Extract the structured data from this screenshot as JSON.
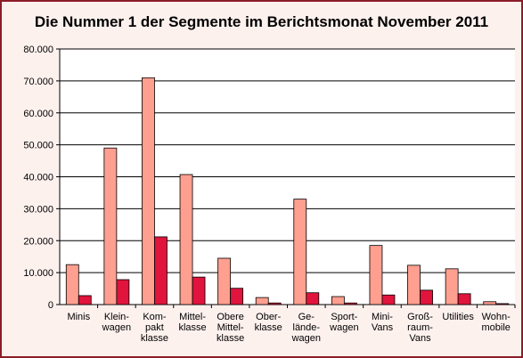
{
  "chart_data": {
    "type": "bar",
    "title": "Die Nummer 1 der Segmente im Berichtsmonat November 2011",
    "categories": [
      [
        "Minis"
      ],
      [
        "Klein-",
        "wagen"
      ],
      [
        "Kom-",
        "pakt",
        "klasse"
      ],
      [
        "Mittel-",
        "klasse"
      ],
      [
        "Obere",
        "Mittel-",
        "klasse"
      ],
      [
        "Ober-",
        "klasse"
      ],
      [
        "Ge-",
        "lände-",
        "wagen"
      ],
      [
        "Sport-",
        "wagen"
      ],
      [
        "Mini-",
        "Vans"
      ],
      [
        "Groß-",
        "raum-",
        "Vans"
      ],
      [
        "Utilities"
      ],
      [
        "Wohn-",
        "mobile"
      ]
    ],
    "series": [
      {
        "values": [
          12500,
          49000,
          71000,
          40700,
          14500,
          2200,
          33000,
          2500,
          18500,
          12300,
          11200,
          900
        ]
      },
      {
        "values": [
          2800,
          7800,
          21200,
          8600,
          5100,
          500,
          3700,
          500,
          3000,
          4500,
          3400,
          300
        ]
      }
    ],
    "y_ticks": [
      "0",
      "10.000",
      "20.000",
      "30.000",
      "40.000",
      "50.000",
      "60.000",
      "70.000",
      "80.000"
    ],
    "ylim": [
      0,
      80000
    ],
    "grid": true,
    "colors": {
      "series1": "#ff9f8f",
      "series2": "#e0143c",
      "frame_border": "#8c1c28",
      "frame_background": "#fdf1ee"
    }
  }
}
